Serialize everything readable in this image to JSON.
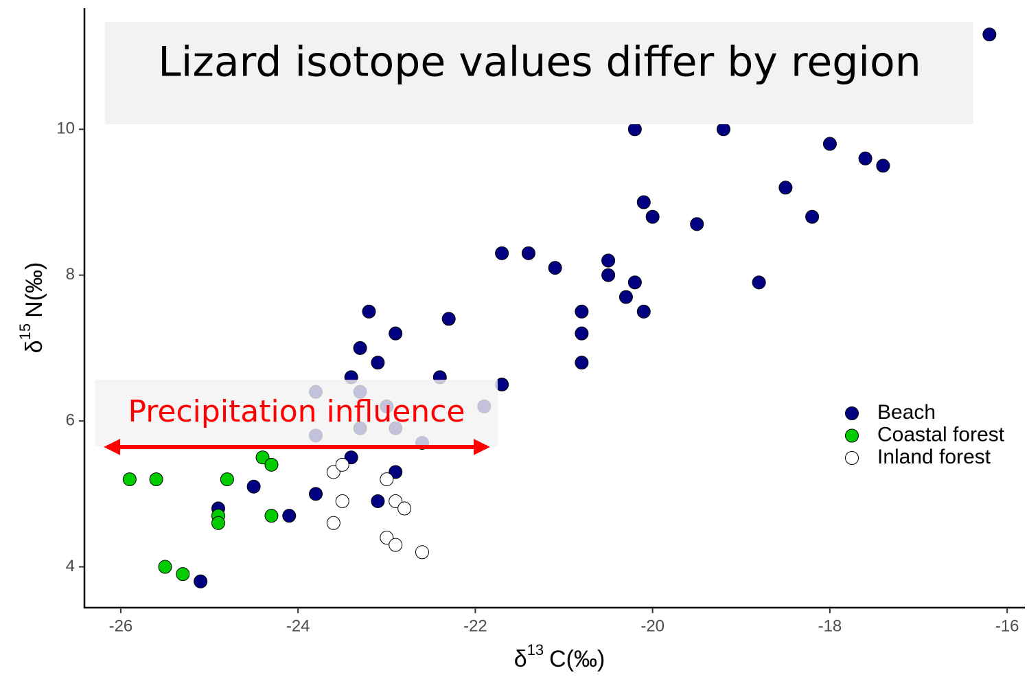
{
  "chart_data": {
    "type": "scatter",
    "title": "Lizard isotope values differ by region",
    "annotation": "Precipitation influence",
    "x_label": {
      "symbol": "δ",
      "superscript": "13",
      "unit": "C(‰)"
    },
    "y_label": {
      "symbol": "δ",
      "superscript": "15",
      "unit": "N(‰)"
    },
    "xlim": [
      -26.41,
      -15.8
    ],
    "ylim": [
      3.44,
      11.66
    ],
    "xticks": [
      -26,
      -24,
      -22,
      -20,
      -18,
      -16
    ],
    "yticks": [
      4,
      6,
      8,
      10
    ],
    "grid": false,
    "legend": "right",
    "series": [
      {
        "name": "Beach",
        "color": "#000080",
        "x": [
          -16.2,
          -20.2,
          -19.2,
          -18,
          -17.6,
          -17.4,
          -18.5,
          -20.1,
          -20.0,
          -19.5,
          -18.2,
          -21.7,
          -21.4,
          -21.1,
          -20.5,
          -20.5,
          -20.2,
          -20.3,
          -20.1,
          -18.8,
          -20.8,
          -20.8,
          -20.8,
          -23.2,
          -22.3,
          -22.9,
          -23.3,
          -23.1,
          -23.4,
          -22.4,
          -21.7,
          -23.4,
          -22.9,
          -24.5,
          -23.8,
          -23.1,
          -24.9,
          -24.1,
          -25.1,
          -23.8,
          -23.3,
          -23.0,
          -21.9,
          -23.8,
          -23.3,
          -22.9,
          -22.6
        ],
        "y": [
          11.3,
          10,
          10,
          9.8,
          9.6,
          9.5,
          9.2,
          9.0,
          8.8,
          8.7,
          8.8,
          8.3,
          8.3,
          8.1,
          8.2,
          8.0,
          7.9,
          7.7,
          7.5,
          7.9,
          7.5,
          7.2,
          6.8,
          7.5,
          7.4,
          7.2,
          7.0,
          6.8,
          6.6,
          6.6,
          6.5,
          5.5,
          5.3,
          5.1,
          5.0,
          4.9,
          4.8,
          4.7,
          3.8,
          6.4,
          6.4,
          6.2,
          6.2,
          5.8,
          5.9,
          5.9,
          5.7
        ]
      },
      {
        "name": "Coastal forest",
        "color": "#00cc00",
        "x": [
          -25.9,
          -25.6,
          -24.8,
          -24.4,
          -24.3,
          -24.9,
          -24.9,
          -24.3,
          -25.5,
          -25.3
        ],
        "y": [
          5.2,
          5.2,
          5.2,
          5.5,
          5.4,
          4.7,
          4.6,
          4.7,
          4.0,
          3.9
        ]
      },
      {
        "name": "Inland forest",
        "color": "#ffffff",
        "x": [
          -23.6,
          -23.5,
          -23.0,
          -23.5,
          -22.9,
          -22.8,
          -23.6,
          -23.0,
          -22.9,
          -22.6
        ],
        "y": [
          5.3,
          5.4,
          5.2,
          4.9,
          4.9,
          4.8,
          4.6,
          4.4,
          4.3,
          4.2
        ]
      }
    ]
  }
}
